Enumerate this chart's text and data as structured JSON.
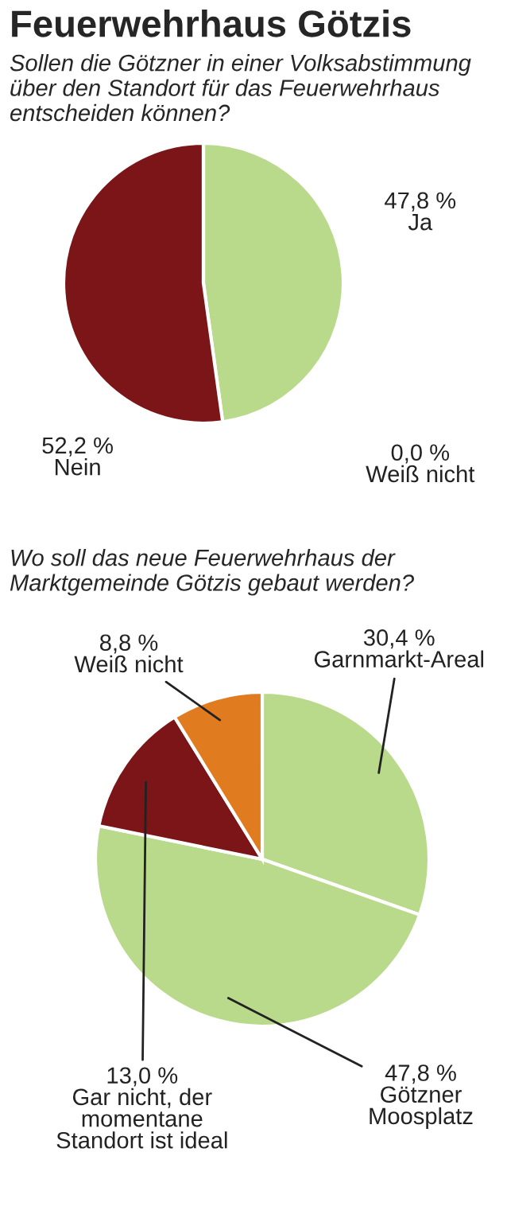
{
  "chart_data": [
    {
      "type": "pie",
      "title": "Feuerwehrhaus Götzis",
      "subtitle": "Sollen die Götzner in einer Volksabstimmung über den Standort für das Feuerwehrhaus entscheiden können?",
      "categories": [
        "Ja",
        "Nein",
        "Weiß nicht"
      ],
      "values": [
        47.8,
        52.2,
        0.0
      ],
      "value_labels": [
        "47,8 %",
        "52,2 %",
        "0,0 %"
      ],
      "colors": [
        "#b9d98b",
        "#7b1518",
        "#e07b20"
      ]
    },
    {
      "type": "pie",
      "title": "Wo soll das neue Feuerwehrhaus der Marktgemeinde Götzis gebaut werden?",
      "categories": [
        "Garnmarkt-Areal",
        "Götzner\nMoosplatz",
        "Gar nicht, der\nmomentane\nStandort ist ideal",
        "Weiß nicht"
      ],
      "values": [
        30.4,
        47.8,
        13.0,
        8.8
      ],
      "value_labels": [
        "30,4 %",
        "47,8 %",
        "13,0 %",
        "8,8 %"
      ],
      "colors": [
        "#b9d98b",
        "#b9d98b",
        "#7b1518",
        "#e07b20"
      ]
    }
  ]
}
